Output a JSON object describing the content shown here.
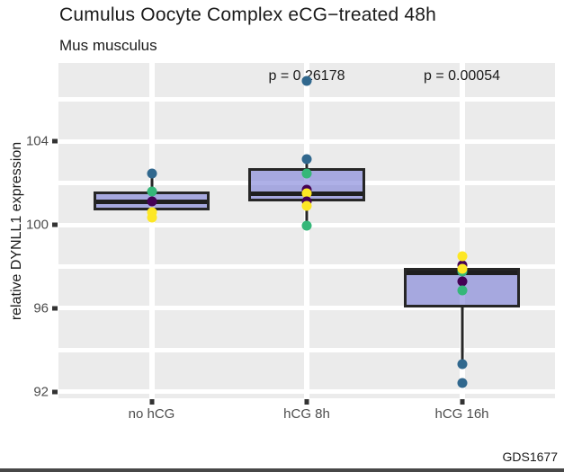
{
  "chart": {
    "title": "Cumulus Oocyte Complex eCG−treated 48h",
    "subtitle": "Mus musculus",
    "y_axis_title": "relative DYNLL1 expression",
    "source": "GDS1677"
  },
  "chart_data": {
    "type": "boxplot",
    "title": "Cumulus Oocyte Complex eCG−treated 48h",
    "subtitle": "Mus musculus",
    "ylabel": "relative DYNLL1 expression",
    "xlabel": "",
    "categories": [
      "no hCG",
      "hCG 8h",
      "hCG 16h"
    ],
    "y_ticks": [
      92,
      96,
      100,
      104
    ],
    "y_minor_ticks": [
      94,
      98,
      102,
      106
    ],
    "ylim": [
      91.7,
      107.8
    ],
    "grid": "on",
    "panel_bg": "#EBEBEB",
    "gridline_color": "#ffffff",
    "box_fill": "#7C7FD8",
    "box_fill_opacity": 0.62,
    "box_border": "#262626",
    "point_palette": {
      "blue": "#31688E",
      "green": "#35B779",
      "purple": "#440154",
      "yellow": "#FDE725"
    },
    "p_values": [
      {
        "label": "p = 0.26178",
        "category_index": 1
      },
      {
        "label": "p = 0.00054",
        "category_index": 2
      }
    ],
    "series": [
      {
        "category": "no hCG",
        "q1": 100.7,
        "median": 101.1,
        "q3": 101.6,
        "whisker_low": null,
        "whisker_high": 102.45,
        "points": [
          {
            "color": "blue",
            "value": 102.45
          },
          {
            "color": "green",
            "value": 101.6
          },
          {
            "color": "purple",
            "value": 101.1
          },
          {
            "color": "yellow",
            "value": 100.6
          },
          {
            "color": "yellow",
            "value": 100.35
          }
        ]
      },
      {
        "category": "hCG 8h",
        "q1": 101.1,
        "median": 101.5,
        "q3": 102.7,
        "whisker_low": 99.95,
        "whisker_high": 103.15,
        "points": [
          {
            "color": "blue",
            "value": 106.9
          },
          {
            "color": "blue",
            "value": 103.15
          },
          {
            "color": "green",
            "value": 102.45
          },
          {
            "color": "green",
            "value": 99.95
          },
          {
            "color": "purple",
            "value": 101.7
          },
          {
            "color": "yellow",
            "value": 101.5
          },
          {
            "color": "purple",
            "value": 101.1
          },
          {
            "color": "yellow",
            "value": 100.9
          }
        ]
      },
      {
        "category": "hCG 16h",
        "q1": 96.05,
        "median": 97.7,
        "q3": 97.95,
        "whisker_low": 93.3,
        "whisker_high": null,
        "points": [
          {
            "color": "purple",
            "value": 98.05
          },
          {
            "color": "green",
            "value": 97.75
          },
          {
            "color": "yellow",
            "value": 98.5
          },
          {
            "color": "yellow",
            "value": 97.9
          },
          {
            "color": "purple",
            "value": 97.3
          },
          {
            "color": "green",
            "value": 96.85
          },
          {
            "color": "blue",
            "value": 93.3
          },
          {
            "color": "blue",
            "value": 92.4
          }
        ]
      }
    ]
  }
}
